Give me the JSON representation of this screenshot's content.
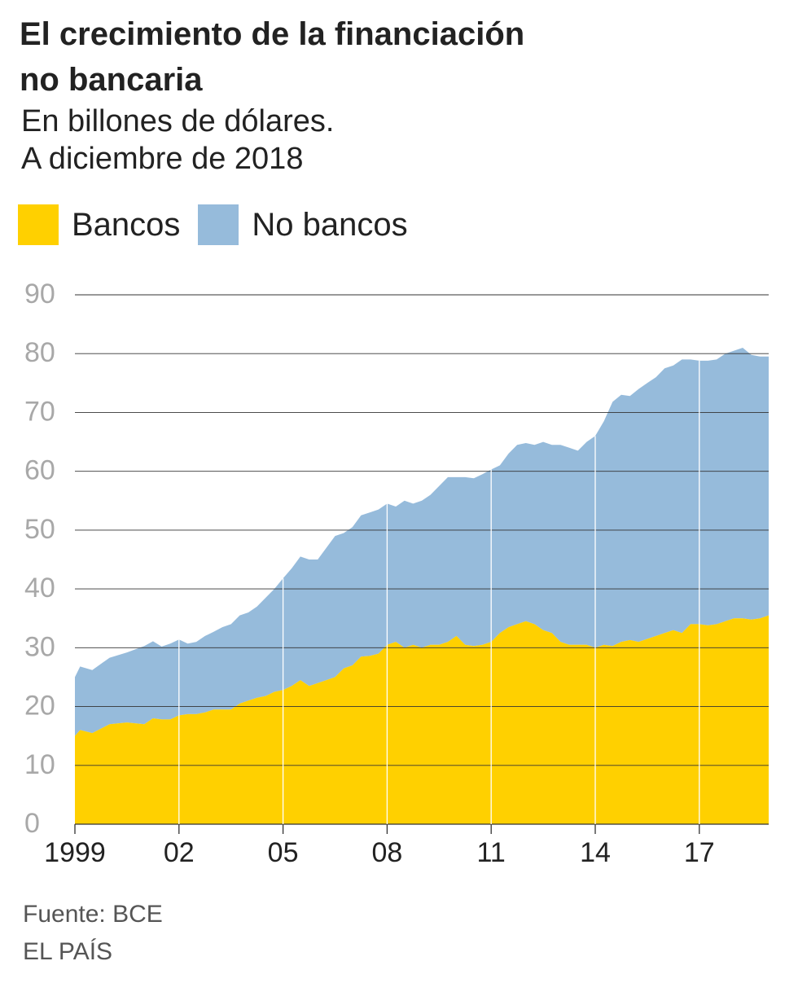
{
  "header": {
    "title_line1": "El crecimiento de la financiación",
    "title_line2": "no bancaria",
    "subtitle_line1": "En billones de dólares.",
    "subtitle_line2": "A diciembre de 2018"
  },
  "legend": [
    {
      "label": "Bancos",
      "color": "#FFD000"
    },
    {
      "label": "No bancos",
      "color": "#96BBDB"
    }
  ],
  "chart_data": {
    "type": "area",
    "stacked": true,
    "title": "El crecimiento de la financiación no bancaria",
    "subtitle": "En billones de dólares. A diciembre de 2018",
    "xlabel": "",
    "ylabel": "",
    "xlim": [
      1999,
      2019
    ],
    "ylim": [
      0,
      90
    ],
    "y_ticks": [
      0,
      10,
      20,
      30,
      40,
      50,
      60,
      70,
      80,
      90
    ],
    "y_tick_labels": [
      "0",
      "10",
      "20",
      "30",
      "40",
      "50",
      "60",
      "70",
      "80",
      "90"
    ],
    "x_ticks": [
      1999,
      2002,
      2005,
      2008,
      2011,
      2014,
      2017
    ],
    "x_tick_labels": [
      "1999",
      "02",
      "05",
      "08",
      "11",
      "14",
      "17"
    ],
    "grid": "horizontal",
    "legend_position": "top-left",
    "x": [
      1999.0,
      1999.15,
      1999.5,
      2000.0,
      2000.5,
      2001.0,
      2001.25,
      2001.5,
      2001.75,
      2002.0,
      2002.25,
      2002.5,
      2002.75,
      2003.0,
      2003.25,
      2003.5,
      2003.75,
      2004.0,
      2004.25,
      2004.5,
      2004.75,
      2005.0,
      2005.25,
      2005.5,
      2005.75,
      2006.0,
      2006.25,
      2006.5,
      2006.75,
      2007.0,
      2007.25,
      2007.5,
      2007.75,
      2008.0,
      2008.25,
      2008.5,
      2008.75,
      2009.0,
      2009.25,
      2009.5,
      2009.75,
      2010.0,
      2010.25,
      2010.5,
      2010.75,
      2011.0,
      2011.25,
      2011.5,
      2011.75,
      2012.0,
      2012.25,
      2012.5,
      2012.75,
      2013.0,
      2013.25,
      2013.5,
      2013.75,
      2014.0,
      2014.25,
      2014.5,
      2014.75,
      2015.0,
      2015.25,
      2015.5,
      2015.75,
      2016.0,
      2016.25,
      2016.5,
      2016.75,
      2017.0,
      2017.25,
      2017.5,
      2017.75,
      2018.0,
      2018.25,
      2018.5,
      2018.75,
      2019.0
    ],
    "series": [
      {
        "name": "Bancos",
        "color": "#FFD000",
        "values": [
          15.0,
          16.0,
          15.5,
          17.0,
          17.3,
          17.0,
          18.0,
          17.8,
          17.8,
          18.5,
          18.7,
          18.7,
          19.0,
          19.5,
          19.5,
          19.5,
          20.5,
          21.0,
          21.5,
          21.8,
          22.5,
          22.8,
          23.5,
          24.5,
          23.5,
          24.0,
          24.5,
          25.0,
          26.5,
          27.0,
          28.5,
          28.6,
          29.0,
          30.5,
          31.0,
          30.0,
          30.5,
          30.0,
          30.5,
          30.5,
          31.0,
          32.0,
          30.5,
          30.3,
          30.5,
          31.0,
          32.5,
          33.5,
          34.0,
          34.5,
          34.0,
          33.0,
          32.5,
          31.0,
          30.5,
          30.5,
          30.5,
          30.0,
          30.5,
          30.3,
          31.0,
          31.3,
          31.0,
          31.5,
          32.0,
          32.5,
          33.0,
          32.5,
          34.0,
          34.0,
          33.8,
          34.0,
          34.5,
          35.0,
          35.0,
          34.8,
          35.0,
          35.5
        ]
      },
      {
        "name": "No bancos",
        "color": "#96BBDB",
        "values": [
          10.0,
          10.8,
          10.7,
          11.3,
          11.9,
          13.3,
          13.1,
          12.4,
          12.9,
          12.9,
          12.0,
          12.3,
          13.0,
          13.2,
          14.0,
          14.5,
          15.0,
          15.0,
          15.5,
          16.7,
          17.5,
          19.0,
          20.0,
          21.0,
          21.5,
          21.0,
          22.5,
          24.0,
          23.0,
          23.5,
          24.0,
          24.4,
          24.5,
          24.0,
          23.0,
          25.0,
          24.0,
          25.0,
          25.5,
          27.0,
          28.0,
          27.0,
          28.5,
          28.5,
          29.0,
          29.3,
          28.5,
          29.5,
          30.5,
          30.3,
          30.5,
          32.0,
          32.0,
          33.5,
          33.5,
          33.0,
          34.5,
          36.0,
          38.0,
          41.5,
          42.0,
          41.5,
          43.0,
          43.5,
          44.0,
          45.0,
          45.0,
          46.5,
          45.0,
          44.8,
          45.0,
          45.0,
          45.5,
          45.5,
          46.0,
          45.0,
          44.5,
          44.0
        ]
      }
    ]
  },
  "footer": {
    "source": "Fuente: BCE",
    "brand": "EL PAÍS"
  }
}
